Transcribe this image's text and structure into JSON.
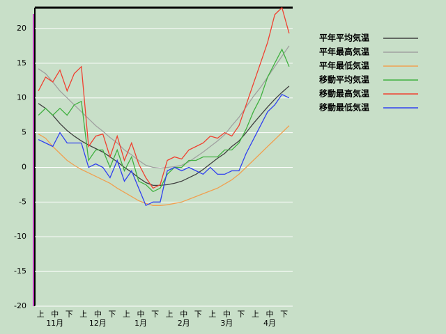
{
  "chart_data": {
    "type": "line",
    "categories": [
      "上",
      null,
      "中",
      null,
      "下",
      null,
      "上",
      null,
      "中",
      null,
      "下",
      null,
      "上",
      null,
      "中",
      null,
      "下",
      null,
      "上",
      null,
      "中",
      null,
      "下",
      null,
      "上",
      null,
      "中",
      null,
      "下",
      null,
      "上",
      null,
      "中",
      null,
      "下",
      null
    ],
    "months": [
      "11月",
      "12月",
      "1月",
      "2月",
      "3月",
      "4月"
    ],
    "ylim": [
      -20,
      23
    ],
    "yticks": [
      -20,
      -15,
      -10,
      -5,
      0,
      5,
      10,
      15,
      20
    ],
    "grid": true,
    "legend": "right",
    "series": [
      {
        "name": "平年平均気温",
        "color": "#404040",
        "values": [
          9.2,
          8.5,
          7.5,
          6.3,
          5.3,
          4.5,
          3.8,
          3.2,
          2.7,
          2.2,
          1.5,
          0.8,
          0,
          -0.7,
          -1.5,
          -2.2,
          -2.6,
          -2.6,
          -2.5,
          -2.3,
          -2,
          -1.5,
          -1,
          -0.3,
          0.5,
          1.3,
          2,
          3,
          3.8,
          5,
          6.3,
          7.5,
          8.7,
          9.8,
          10.8,
          11.7
        ]
      },
      {
        "name": "平年最高気温",
        "color": "#a0a0a0",
        "values": [
          14.2,
          13.5,
          12.3,
          11,
          10,
          9,
          8,
          7,
          6,
          5.2,
          4.3,
          3.5,
          2.5,
          1.8,
          1,
          0.3,
          0,
          -0.1,
          0,
          0.1,
          0.3,
          0.8,
          1.5,
          2.2,
          3,
          3.8,
          4.7,
          6,
          7.2,
          8.7,
          10.2,
          11.5,
          13,
          14.5,
          16,
          17.5
        ]
      },
      {
        "name": "平年最低気温",
        "color": "#f0a050",
        "values": [
          4.8,
          4.2,
          3,
          2,
          1,
          0.3,
          -0.3,
          -0.8,
          -1.3,
          -1.8,
          -2.3,
          -3,
          -3.6,
          -4.2,
          -4.8,
          -5.2,
          -5.5,
          -5.5,
          -5.4,
          -5.2,
          -5,
          -4.6,
          -4.2,
          -3.8,
          -3.4,
          -3,
          -2.4,
          -1.8,
          -1,
          0,
          1,
          2,
          3,
          4,
          5,
          6
        ]
      },
      {
        "name": "移動平均気温",
        "color": "#40b040",
        "values": [
          7.5,
          8.5,
          7.5,
          8.5,
          7.5,
          9,
          9.5,
          1,
          2.5,
          2.5,
          0,
          2.5,
          -0.5,
          1.5,
          -2,
          -2.5,
          -3.5,
          -3,
          -1,
          0,
          0,
          1,
          1,
          1.5,
          1.5,
          1.5,
          2.5,
          2.5,
          3.5,
          5.5,
          8,
          10,
          13,
          15,
          17,
          14.5
        ]
      },
      {
        "name": "移動最高気温",
        "color": "#f04030",
        "values": [
          11,
          13,
          12.3,
          14,
          11,
          13.5,
          14.5,
          3,
          4.5,
          4.8,
          1.5,
          4.5,
          1,
          3.5,
          0.5,
          -1.5,
          -3,
          -2.5,
          1,
          1.5,
          1.2,
          2.5,
          3,
          3.5,
          4.5,
          4.2,
          5,
          4.5,
          6,
          9,
          12,
          15,
          18,
          22,
          23,
          19.3
        ]
      },
      {
        "name": "移動最低気温",
        "color": "#3040f0",
        "values": [
          4,
          3.5,
          3,
          5,
          3.5,
          3.5,
          3.5,
          0,
          0.5,
          0,
          -1.5,
          1,
          -2,
          -0.5,
          -3,
          -5.5,
          -5,
          -5,
          -0.5,
          0,
          -0.5,
          0,
          -0.5,
          -1,
          0,
          -1,
          -1,
          -0.5,
          -0.5,
          2,
          4,
          6,
          8,
          9,
          10.5,
          10
        ]
      }
    ]
  }
}
